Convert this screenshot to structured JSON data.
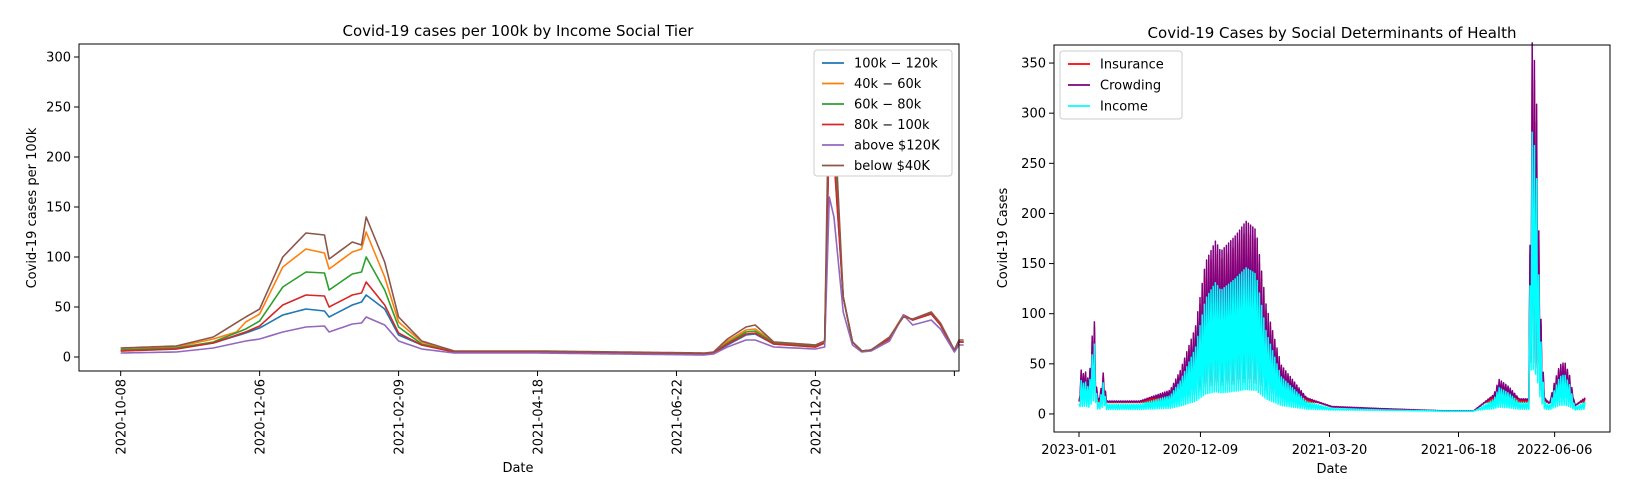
{
  "chart_data": [
    {
      "type": "line",
      "title": "Covid-19 cases per 100k by Income Social Tier",
      "xlabel": "Date",
      "ylabel": "Covid-19 cases per 100k",
      "x_tick_labels": [
        "2020-10-08",
        "2020-12-06",
        "2021-02-09",
        "2021-04-18",
        "2021-06-22",
        "2021-12-20"
      ],
      "x_tick_index": [
        0,
        30,
        60,
        90,
        120,
        150
      ],
      "x_count": 183,
      "xlim": [
        -9,
        181
      ],
      "ylim": [
        -14,
        313
      ],
      "y_ticks": [
        0,
        50,
        100,
        150,
        200,
        250,
        300
      ],
      "legend_position": "upper right",
      "series": [
        {
          "name": "$100k-$120k",
          "display": "100k − 120k",
          "color": "#1f77b4",
          "knots": [
            [
              0,
              6
            ],
            [
              12,
              8
            ],
            [
              20,
              14
            ],
            [
              27,
              24
            ],
            [
              30,
              29
            ],
            [
              35,
              42
            ],
            [
              40,
              48
            ],
            [
              44,
              46
            ],
            [
              45,
              40
            ],
            [
              50,
              52
            ],
            [
              52,
              55
            ],
            [
              53,
              62
            ],
            [
              57,
              48
            ],
            [
              60,
              22
            ],
            [
              65,
              12
            ],
            [
              72,
              5
            ],
            [
              90,
              5
            ],
            [
              126,
              3
            ],
            [
              128,
              4
            ],
            [
              131,
              12
            ],
            [
              135,
              22
            ],
            [
              137,
              23
            ],
            [
              141,
              13
            ],
            [
              150,
              10
            ],
            [
              152,
              14
            ],
            [
              153,
              235
            ],
            [
              154,
              200
            ],
            [
              156,
              60
            ],
            [
              158,
              15
            ],
            [
              160,
              6
            ],
            [
              162,
              7
            ],
            [
              166,
              18
            ],
            [
              169,
              42
            ],
            [
              171,
              37
            ],
            [
              175,
              43
            ],
            [
              177,
              32
            ],
            [
              180,
              6
            ],
            [
              181,
              15
            ]
          ]
        },
        {
          "name": "$40k-$60k",
          "display": "40k − 60k",
          "color": "#ff7f0e",
          "knots": [
            [
              0,
              8
            ],
            [
              12,
              10
            ],
            [
              20,
              18
            ],
            [
              25,
              25
            ],
            [
              27,
              35
            ],
            [
              30,
              43
            ],
            [
              35,
              90
            ],
            [
              40,
              108
            ],
            [
              44,
              104
            ],
            [
              45,
              88
            ],
            [
              50,
              105
            ],
            [
              52,
              108
            ],
            [
              53,
              125
            ],
            [
              57,
              80
            ],
            [
              60,
              35
            ],
            [
              65,
              15
            ],
            [
              72,
              5
            ],
            [
              90,
              5
            ],
            [
              126,
              3
            ],
            [
              128,
              4
            ],
            [
              131,
              16
            ],
            [
              135,
              27
            ],
            [
              137,
              28
            ],
            [
              141,
              15
            ],
            [
              150,
              12
            ],
            [
              152,
              14
            ],
            [
              153,
              250
            ],
            [
              154,
              215
            ],
            [
              156,
              60
            ],
            [
              158,
              15
            ],
            [
              160,
              6
            ],
            [
              162,
              7
            ],
            [
              166,
              20
            ],
            [
              169,
              42
            ],
            [
              171,
              37
            ],
            [
              175,
              45
            ],
            [
              177,
              33
            ],
            [
              180,
              6
            ],
            [
              181,
              15
            ]
          ]
        },
        {
          "name": "$60k-$80k",
          "display": "60k − 80k",
          "color": "#2ca02c",
          "knots": [
            [
              0,
              7
            ],
            [
              12,
              9
            ],
            [
              20,
              15
            ],
            [
              27,
              28
            ],
            [
              30,
              36
            ],
            [
              35,
              70
            ],
            [
              40,
              85
            ],
            [
              44,
              84
            ],
            [
              45,
              67
            ],
            [
              50,
              83
            ],
            [
              52,
              85
            ],
            [
              53,
              100
            ],
            [
              57,
              67
            ],
            [
              60,
              30
            ],
            [
              65,
              13
            ],
            [
              72,
              5
            ],
            [
              90,
              5
            ],
            [
              126,
              3
            ],
            [
              128,
              4
            ],
            [
              131,
              14
            ],
            [
              135,
              25
            ],
            [
              137,
              26
            ],
            [
              141,
              14
            ],
            [
              150,
              11
            ],
            [
              152,
              14
            ],
            [
              153,
              245
            ],
            [
              154,
              210
            ],
            [
              156,
              60
            ],
            [
              158,
              15
            ],
            [
              160,
              6
            ],
            [
              162,
              7
            ],
            [
              166,
              18
            ],
            [
              169,
              42
            ],
            [
              171,
              37
            ],
            [
              175,
              44
            ],
            [
              177,
              32
            ],
            [
              180,
              6
            ],
            [
              181,
              15
            ]
          ]
        },
        {
          "name": "$80k-$100k",
          "display": "80k − 100k",
          "color": "#d62728",
          "knots": [
            [
              0,
              6
            ],
            [
              12,
              8
            ],
            [
              20,
              14
            ],
            [
              27,
              25
            ],
            [
              30,
              31
            ],
            [
              35,
              52
            ],
            [
              40,
              62
            ],
            [
              44,
              61
            ],
            [
              45,
              50
            ],
            [
              50,
              62
            ],
            [
              52,
              64
            ],
            [
              53,
              75
            ],
            [
              57,
              52
            ],
            [
              60,
              24
            ],
            [
              65,
              12
            ],
            [
              72,
              5
            ],
            [
              90,
              5
            ],
            [
              126,
              3
            ],
            [
              128,
              4
            ],
            [
              131,
              13
            ],
            [
              135,
              23
            ],
            [
              137,
              24
            ],
            [
              141,
              13
            ],
            [
              150,
              10
            ],
            [
              152,
              14
            ],
            [
              153,
              230
            ],
            [
              154,
              200
            ],
            [
              156,
              60
            ],
            [
              158,
              15
            ],
            [
              160,
              6
            ],
            [
              162,
              7
            ],
            [
              166,
              18
            ],
            [
              169,
              42
            ],
            [
              171,
              37
            ],
            [
              175,
              43
            ],
            [
              177,
              32
            ],
            [
              180,
              6
            ],
            [
              181,
              15
            ]
          ]
        },
        {
          "name": "above $120K",
          "display": "above $120K",
          "color": "#9467bd",
          "knots": [
            [
              0,
              4
            ],
            [
              12,
              5
            ],
            [
              20,
              9
            ],
            [
              27,
              16
            ],
            [
              30,
              18
            ],
            [
              35,
              25
            ],
            [
              40,
              30
            ],
            [
              44,
              31
            ],
            [
              45,
              25
            ],
            [
              50,
              33
            ],
            [
              52,
              34
            ],
            [
              53,
              40
            ],
            [
              57,
              32
            ],
            [
              60,
              16
            ],
            [
              65,
              8
            ],
            [
              72,
              4
            ],
            [
              90,
              4
            ],
            [
              126,
              2
            ],
            [
              128,
              3
            ],
            [
              131,
              10
            ],
            [
              135,
              17
            ],
            [
              137,
              17
            ],
            [
              141,
              10
            ],
            [
              150,
              8
            ],
            [
              152,
              10
            ],
            [
              153,
              160
            ],
            [
              154,
              140
            ],
            [
              156,
              45
            ],
            [
              158,
              12
            ],
            [
              160,
              5
            ],
            [
              162,
              6
            ],
            [
              166,
              16
            ],
            [
              169,
              42
            ],
            [
              171,
              32
            ],
            [
              175,
              37
            ],
            [
              177,
              28
            ],
            [
              180,
              5
            ],
            [
              181,
              12
            ]
          ]
        },
        {
          "name": "below $40K",
          "display": "below $40K",
          "color": "#8c564b",
          "knots": [
            [
              0,
              9
            ],
            [
              12,
              11
            ],
            [
              20,
              20
            ],
            [
              27,
              40
            ],
            [
              30,
              48
            ],
            [
              35,
              100
            ],
            [
              40,
              124
            ],
            [
              44,
              122
            ],
            [
              45,
              98
            ],
            [
              50,
              115
            ],
            [
              52,
              112
            ],
            [
              53,
              140
            ],
            [
              57,
              95
            ],
            [
              60,
              40
            ],
            [
              65,
              16
            ],
            [
              72,
              6
            ],
            [
              90,
              6
            ],
            [
              126,
              4
            ],
            [
              128,
              5
            ],
            [
              131,
              18
            ],
            [
              135,
              30
            ],
            [
              137,
              32
            ],
            [
              141,
              15
            ],
            [
              150,
              12
            ],
            [
              152,
              16
            ],
            [
              153,
              298
            ],
            [
              154,
              250
            ],
            [
              156,
              60
            ],
            [
              158,
              15
            ],
            [
              160,
              6
            ],
            [
              162,
              7
            ],
            [
              166,
              20
            ],
            [
              169,
              40
            ],
            [
              171,
              38
            ],
            [
              175,
              45
            ],
            [
              177,
              34
            ],
            [
              180,
              7
            ],
            [
              181,
              17
            ]
          ]
        }
      ]
    },
    {
      "type": "line",
      "title": "Covid-19 Cases by Social Determinants of Health",
      "xlabel": "Date",
      "ylabel": "Covid-19 Cases",
      "x_tick_labels": [
        "2023-01-01",
        "2020-12-09",
        "2021-03-20",
        "2021-06-18",
        "2022-06-06"
      ],
      "x_tick_frac": [
        0,
        0.24,
        0.495,
        0.75,
        0.94
      ],
      "ylim": [
        -18,
        368
      ],
      "y_ticks": [
        0,
        50,
        100,
        150,
        200,
        250,
        300,
        350
      ],
      "legend_position": "upper left",
      "series": [
        {
          "name": "Insurance",
          "color": "#ff0000",
          "lower": 10,
          "upper_scale": 1.02
        },
        {
          "name": "Crowding",
          "color": "#800080",
          "lower": 14,
          "upper_scale": 1.08
        },
        {
          "name": "Income",
          "color": "#00ffff",
          "lower": 3,
          "upper_scale": 0.82
        }
      ],
      "envelope_knots": [
        [
          0,
          12
        ],
        [
          0.003,
          45
        ],
        [
          0.006,
          35
        ],
        [
          0.012,
          40
        ],
        [
          0.02,
          30
        ],
        [
          0.028,
          85
        ],
        [
          0.032,
          85
        ],
        [
          0.035,
          20
        ],
        [
          0.04,
          12
        ],
        [
          0.05,
          45
        ],
        [
          0.053,
          12
        ],
        [
          0.12,
          12
        ],
        [
          0.18,
          22
        ],
        [
          0.2,
          40
        ],
        [
          0.23,
          80
        ],
        [
          0.25,
          140
        ],
        [
          0.27,
          160
        ],
        [
          0.28,
          150
        ],
        [
          0.31,
          165
        ],
        [
          0.33,
          178
        ],
        [
          0.35,
          170
        ],
        [
          0.37,
          100
        ],
        [
          0.4,
          45
        ],
        [
          0.45,
          15
        ],
        [
          0.5,
          7
        ],
        [
          0.6,
          5
        ],
        [
          0.72,
          3
        ],
        [
          0.78,
          3
        ],
        [
          0.82,
          18
        ],
        [
          0.83,
          32
        ],
        [
          0.85,
          25
        ],
        [
          0.87,
          14
        ],
        [
          0.89,
          14
        ],
        [
          0.893,
          340
        ],
        [
          0.898,
          345
        ],
        [
          0.905,
          280
        ],
        [
          0.91,
          130
        ],
        [
          0.915,
          60
        ],
        [
          0.92,
          15
        ],
        [
          0.93,
          10
        ],
        [
          0.94,
          30
        ],
        [
          0.95,
          45
        ],
        [
          0.96,
          48
        ],
        [
          0.97,
          35
        ],
        [
          0.98,
          8
        ],
        [
          1.0,
          15
        ]
      ]
    }
  ]
}
